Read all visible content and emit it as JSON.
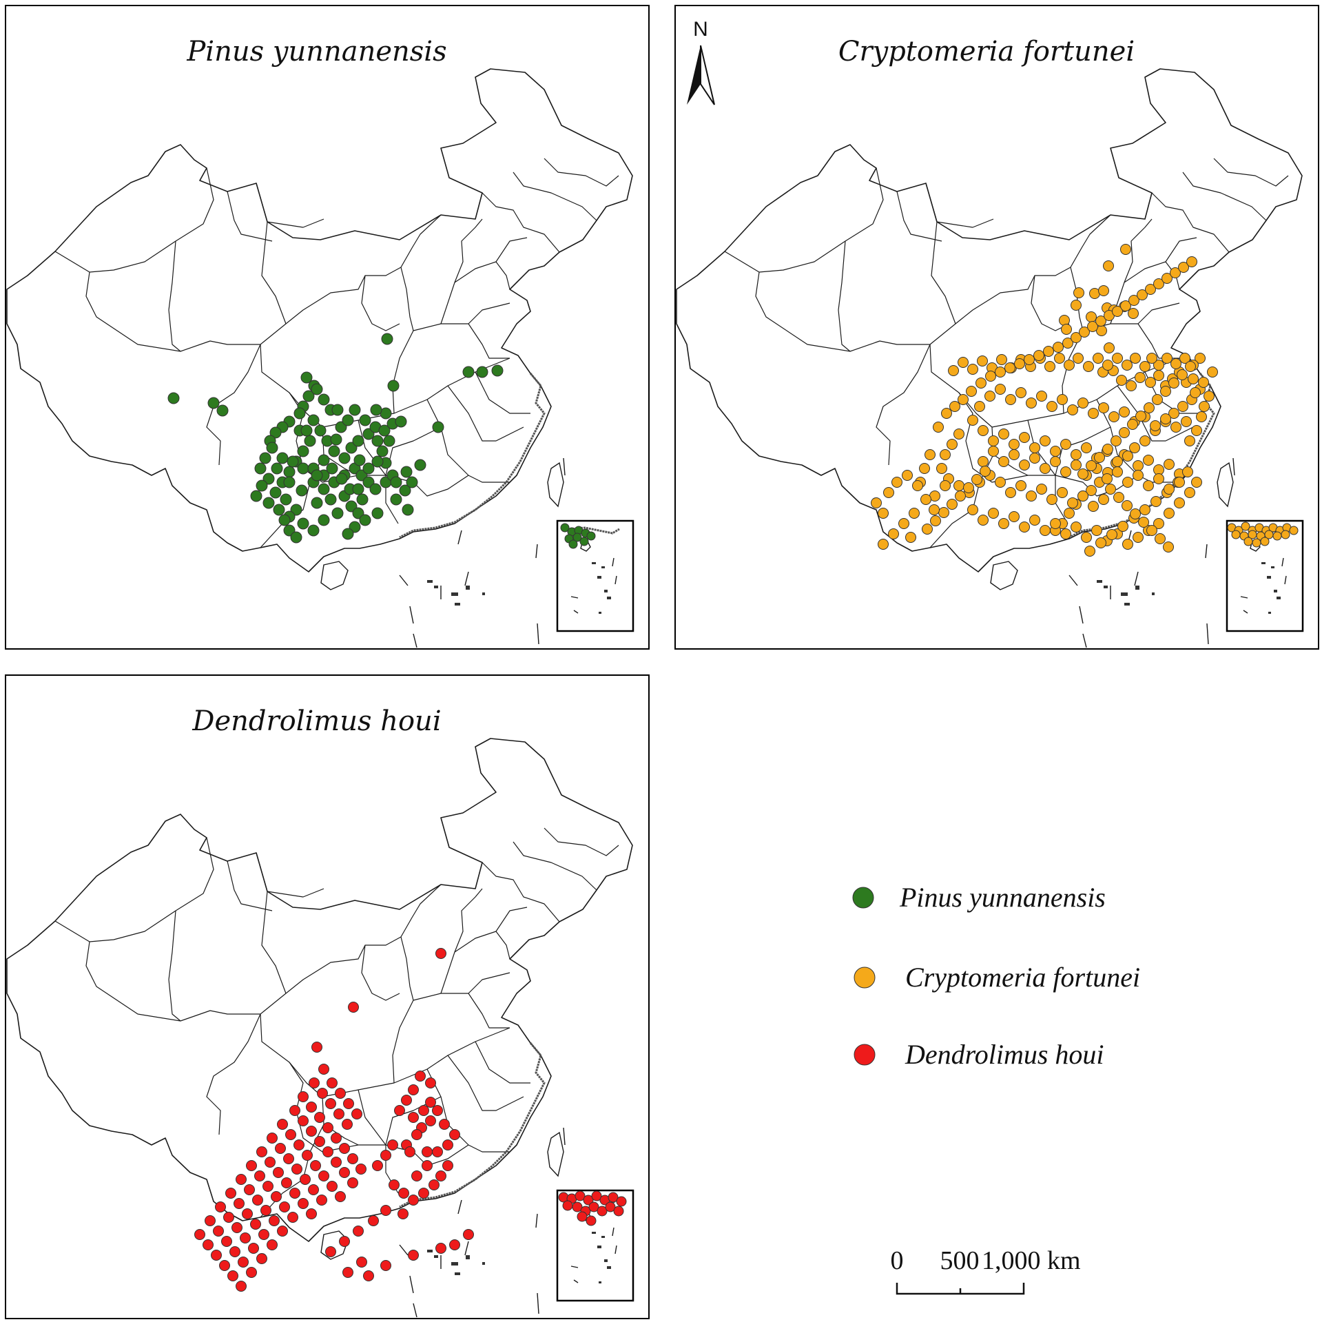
{
  "panels": {
    "pinus": {
      "title": "Pinus yunnanensis",
      "color": "#2d7a1f"
    },
    "cryptomeria": {
      "title": "Cryptomeria fortunei",
      "color": "#f5a91a"
    },
    "dendrolimus": {
      "title": "Dendrolimus houi",
      "color": "#ee1b1b"
    }
  },
  "legend": {
    "items": [
      {
        "label": "Pinus yunnanensis",
        "color": "#2d7a1f"
      },
      {
        "label": "Cryptomeria fortunei",
        "color": "#f5a91a"
      },
      {
        "label": "Dendrolimus houi",
        "color": "#ee1b1b"
      }
    ]
  },
  "north_arrow": {
    "label": "N"
  },
  "scale_bar": {
    "label_0": "0",
    "label_500": "500",
    "label_1000": "1,000 km"
  }
}
